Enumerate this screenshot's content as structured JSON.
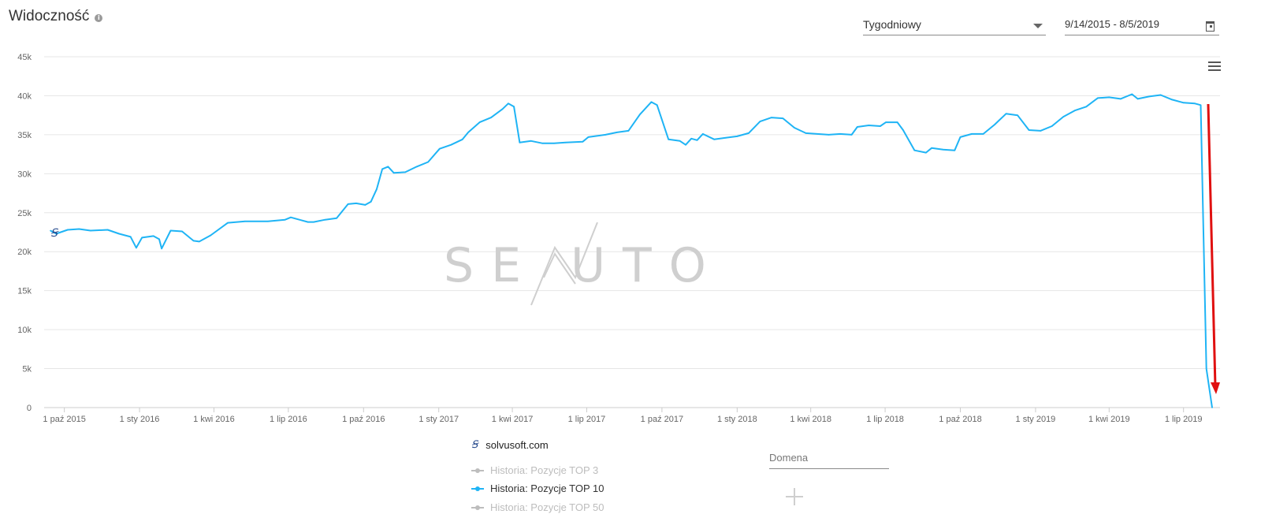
{
  "header": {
    "title": "Widoczność",
    "info_icon": "info-icon",
    "interval_select": "Tygodniowy",
    "date_range": "9/14/2015 - 8/5/2019"
  },
  "watermark": "SE UTO",
  "colors": {
    "series": "#1fb4f5",
    "arrow": "#e01010",
    "grid": "#e6e6e6",
    "inactive": "#bdbdbd"
  },
  "legend": {
    "site": "solvusoft.com",
    "items": [
      {
        "label": "Historia: Pozycje TOP 3",
        "active": false
      },
      {
        "label": "Historia: Pozycje TOP 10",
        "active": true
      },
      {
        "label": "Historia: Pozycje TOP 50",
        "active": false
      }
    ],
    "domain_placeholder": "Domena"
  },
  "chart_data": {
    "type": "line",
    "title": "Widoczność",
    "ylim": [
      0,
      45000
    ],
    "yticks": [
      0,
      5000,
      10000,
      15000,
      20000,
      25000,
      30000,
      35000,
      40000,
      45000
    ],
    "ytick_labels": [
      "0",
      "5k",
      "10k",
      "15k",
      "20k",
      "25k",
      "30k",
      "35k",
      "40k",
      "45k"
    ],
    "xlim": [
      "2015-09-14",
      "2019-08-05"
    ],
    "xticks": [
      "2015-10-01",
      "2016-01-01",
      "2016-04-01",
      "2016-07-01",
      "2016-10-01",
      "2017-01-01",
      "2017-04-01",
      "2017-07-01",
      "2017-10-01",
      "2018-01-01",
      "2018-04-01",
      "2018-07-01",
      "2018-10-01",
      "2019-01-01",
      "2019-04-01",
      "2019-07-01"
    ],
    "xtick_labels": [
      "1 paź 2015",
      "1 sty 2016",
      "1 kwi 2016",
      "1 lip 2016",
      "1 paź 2016",
      "1 sty 2017",
      "1 kwi 2017",
      "1 lip 2017",
      "1 paź 2017",
      "1 sty 2018",
      "1 kwi 2018",
      "1 lip 2018",
      "1 paź 2018",
      "1 sty 2019",
      "1 kwi 2019",
      "1 lip 2019"
    ],
    "grid": true,
    "series": [
      {
        "name": "Historia: Pozycje TOP 10",
        "points": [
          [
            "2015-09-14",
            22700
          ],
          [
            "2015-09-21",
            22300
          ],
          [
            "2015-10-05",
            22800
          ],
          [
            "2015-10-19",
            22900
          ],
          [
            "2015-11-02",
            22700
          ],
          [
            "2015-11-23",
            22800
          ],
          [
            "2015-12-07",
            22300
          ],
          [
            "2015-12-21",
            21900
          ],
          [
            "2015-12-28",
            20500
          ],
          [
            "2016-01-04",
            21800
          ],
          [
            "2016-01-18",
            22000
          ],
          [
            "2016-01-25",
            21600
          ],
          [
            "2016-01-28",
            20400
          ],
          [
            "2016-02-08",
            22700
          ],
          [
            "2016-02-22",
            22600
          ],
          [
            "2016-03-07",
            21400
          ],
          [
            "2016-03-14",
            21300
          ],
          [
            "2016-03-28",
            22100
          ],
          [
            "2016-04-18",
            23700
          ],
          [
            "2016-05-09",
            23900
          ],
          [
            "2016-06-06",
            23900
          ],
          [
            "2016-06-27",
            24100
          ],
          [
            "2016-07-04",
            24400
          ],
          [
            "2016-07-11",
            24200
          ],
          [
            "2016-07-25",
            23800
          ],
          [
            "2016-08-01",
            23800
          ],
          [
            "2016-08-15",
            24100
          ],
          [
            "2016-08-29",
            24300
          ],
          [
            "2016-09-12",
            26100
          ],
          [
            "2016-09-22",
            26200
          ],
          [
            "2016-10-03",
            26000
          ],
          [
            "2016-10-10",
            26400
          ],
          [
            "2016-10-17",
            28000
          ],
          [
            "2016-10-24",
            30600
          ],
          [
            "2016-10-31",
            30900
          ],
          [
            "2016-11-07",
            30100
          ],
          [
            "2016-11-21",
            30200
          ],
          [
            "2016-12-05",
            30900
          ],
          [
            "2016-12-19",
            31500
          ],
          [
            "2017-01-02",
            33200
          ],
          [
            "2017-01-16",
            33700
          ],
          [
            "2017-01-30",
            34400
          ],
          [
            "2017-02-06",
            35300
          ],
          [
            "2017-02-20",
            36600
          ],
          [
            "2017-03-06",
            37200
          ],
          [
            "2017-03-20",
            38300
          ],
          [
            "2017-03-27",
            39000
          ],
          [
            "2017-04-03",
            38600
          ],
          [
            "2017-04-10",
            34000
          ],
          [
            "2017-04-24",
            34200
          ],
          [
            "2017-05-08",
            33900
          ],
          [
            "2017-05-22",
            33900
          ],
          [
            "2017-06-05",
            34000
          ],
          [
            "2017-06-26",
            34100
          ],
          [
            "2017-07-03",
            34700
          ],
          [
            "2017-07-24",
            35000
          ],
          [
            "2017-08-07",
            35300
          ],
          [
            "2017-08-21",
            35500
          ],
          [
            "2017-09-04",
            37600
          ],
          [
            "2017-09-18",
            39200
          ],
          [
            "2017-09-25",
            38800
          ],
          [
            "2017-10-09",
            34400
          ],
          [
            "2017-10-23",
            34200
          ],
          [
            "2017-10-30",
            33700
          ],
          [
            "2017-11-06",
            34500
          ],
          [
            "2017-11-13",
            34300
          ],
          [
            "2017-11-20",
            35100
          ],
          [
            "2017-12-04",
            34400
          ],
          [
            "2017-12-18",
            34600
          ],
          [
            "2018-01-01",
            34800
          ],
          [
            "2018-01-15",
            35200
          ],
          [
            "2018-01-29",
            36700
          ],
          [
            "2018-02-12",
            37200
          ],
          [
            "2018-02-26",
            37100
          ],
          [
            "2018-03-12",
            35900
          ],
          [
            "2018-03-26",
            35200
          ],
          [
            "2018-04-09",
            35100
          ],
          [
            "2018-04-23",
            35000
          ],
          [
            "2018-05-07",
            35100
          ],
          [
            "2018-05-21",
            35000
          ],
          [
            "2018-05-28",
            36000
          ],
          [
            "2018-06-11",
            36200
          ],
          [
            "2018-06-25",
            36100
          ],
          [
            "2018-07-02",
            36600
          ],
          [
            "2018-07-16",
            36600
          ],
          [
            "2018-07-23",
            35600
          ],
          [
            "2018-08-06",
            33000
          ],
          [
            "2018-08-20",
            32700
          ],
          [
            "2018-08-27",
            33300
          ],
          [
            "2018-09-10",
            33100
          ],
          [
            "2018-09-24",
            33000
          ],
          [
            "2018-10-01",
            34700
          ],
          [
            "2018-10-15",
            35100
          ],
          [
            "2018-10-29",
            35100
          ],
          [
            "2018-11-12",
            36300
          ],
          [
            "2018-11-26",
            37700
          ],
          [
            "2018-12-10",
            37500
          ],
          [
            "2018-12-24",
            35600
          ],
          [
            "2019-01-07",
            35500
          ],
          [
            "2019-01-21",
            36100
          ],
          [
            "2019-02-04",
            37300
          ],
          [
            "2019-02-18",
            38100
          ],
          [
            "2019-03-04",
            38600
          ],
          [
            "2019-03-18",
            39700
          ],
          [
            "2019-04-01",
            39800
          ],
          [
            "2019-04-15",
            39600
          ],
          [
            "2019-04-29",
            40200
          ],
          [
            "2019-05-06",
            39600
          ],
          [
            "2019-05-20",
            39900
          ],
          [
            "2019-06-03",
            40100
          ],
          [
            "2019-06-17",
            39500
          ],
          [
            "2019-07-01",
            39100
          ],
          [
            "2019-07-15",
            39000
          ],
          [
            "2019-07-22",
            38800
          ],
          [
            "2019-07-29",
            5000
          ],
          [
            "2019-08-05",
            0
          ]
        ]
      }
    ]
  }
}
